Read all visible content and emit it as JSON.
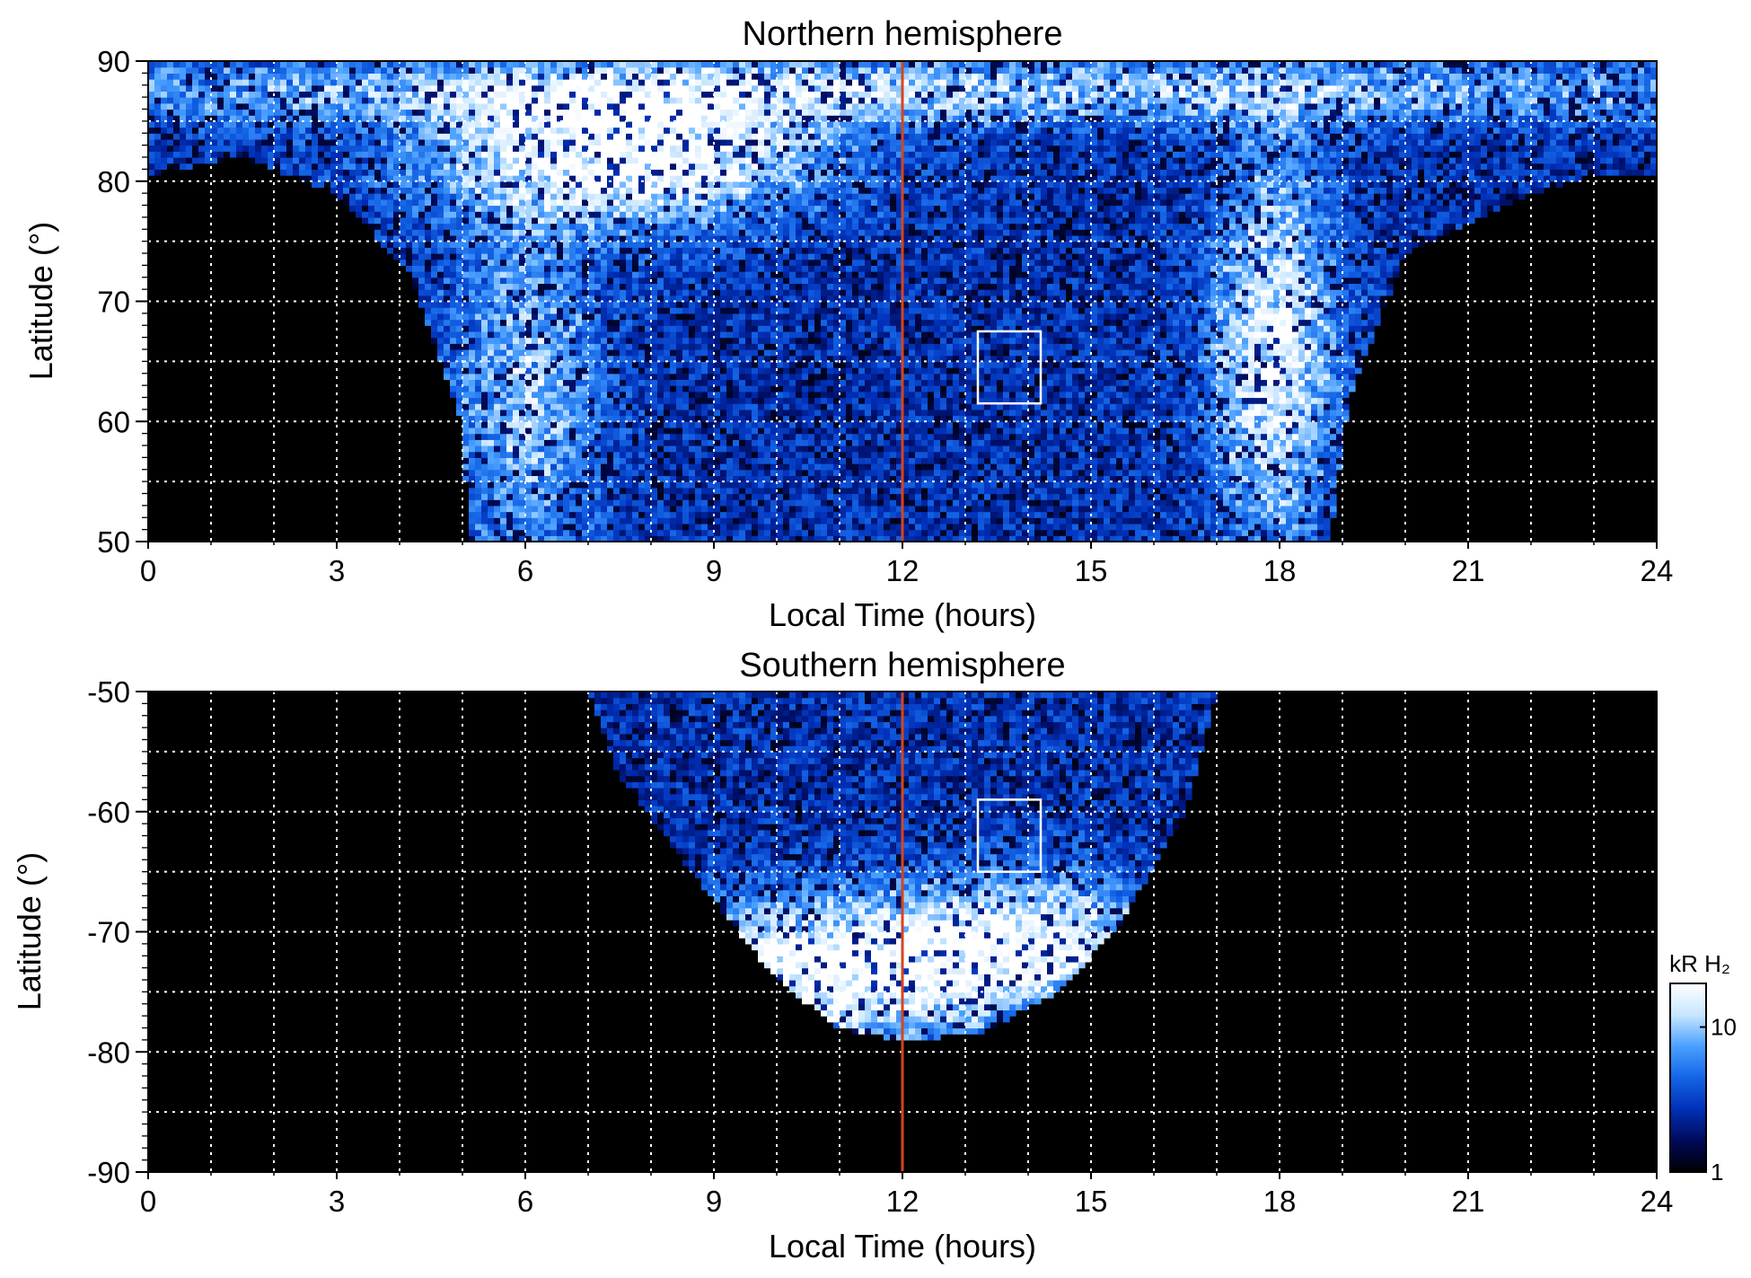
{
  "chart_data": [
    {
      "type": "heatmap",
      "title": "Northern hemisphere",
      "xlabel": "Local Time (hours)",
      "ylabel": "Latitude (°)",
      "xlim": [
        0,
        24
      ],
      "ylim": [
        50,
        90
      ],
      "x_ticks": [
        "0",
        "3",
        "6",
        "9",
        "12",
        "15",
        "18",
        "21",
        "24"
      ],
      "y_ticks": [
        "50",
        "60",
        "70",
        "80",
        "90"
      ],
      "x_tick_values": [
        0,
        3,
        6,
        9,
        12,
        15,
        18,
        21,
        24
      ],
      "y_tick_values": [
        50,
        60,
        70,
        80,
        90
      ],
      "grid": true,
      "noon_line_x": 12,
      "box": {
        "x": [
          13.2,
          14.2
        ],
        "y": [
          61.5,
          67.5
        ]
      },
      "coverage": [
        [
          0,
          90
        ],
        [
          0,
          80.5
        ],
        [
          1.5,
          82
        ],
        [
          3,
          79
        ],
        [
          4.2,
          72
        ],
        [
          5,
          60
        ],
        [
          5.1,
          50
        ],
        [
          18.8,
          50
        ],
        [
          19.1,
          62
        ],
        [
          20,
          74
        ],
        [
          22,
          79
        ],
        [
          23,
          80.5
        ],
        [
          24,
          80.5
        ],
        [
          24,
          90
        ]
      ],
      "features": [
        {
          "name": "morning arc",
          "x": 7.6,
          "y": 82,
          "sx": 2.2,
          "sy": 4,
          "amp": 0.9
        },
        {
          "name": "dawn band",
          "x": 6,
          "y": 62,
          "sx": 0.9,
          "sy": 10,
          "amp": 0.5
        },
        {
          "name": "dusk band",
          "x": 17.9,
          "y": 66,
          "sx": 0.7,
          "sy": 12,
          "amp": 0.75
        },
        {
          "name": "polar cap",
          "x": 12,
          "y": 87.5,
          "sx": 12,
          "sy": 2,
          "amp": 0.55
        }
      ]
    },
    {
      "type": "heatmap",
      "title": "Southern hemisphere",
      "xlabel": "Local Time (hours)",
      "ylabel": "Latitude (°)",
      "xlim": [
        0,
        24
      ],
      "ylim": [
        -90,
        -50
      ],
      "x_ticks": [
        "0",
        "3",
        "6",
        "9",
        "12",
        "15",
        "18",
        "21",
        "24"
      ],
      "y_ticks": [
        "-90",
        "-80",
        "-70",
        "-60",
        "-50"
      ],
      "x_tick_values": [
        0,
        3,
        6,
        9,
        12,
        15,
        18,
        21,
        24
      ],
      "y_tick_values": [
        -90,
        -80,
        -70,
        -60,
        -50
      ],
      "grid": true,
      "noon_line_x": 12,
      "box": {
        "x": [
          13.2,
          14.2
        ],
        "y": [
          -65,
          -59
        ]
      },
      "coverage": [
        [
          7,
          -50
        ],
        [
          7.5,
          -57
        ],
        [
          8.8,
          -66
        ],
        [
          10,
          -74
        ],
        [
          11,
          -78
        ],
        [
          12,
          -79
        ],
        [
          13.2,
          -78.5
        ],
        [
          14.5,
          -75
        ],
        [
          15.5,
          -69
        ],
        [
          16.5,
          -60
        ],
        [
          17,
          -50
        ]
      ],
      "features": [
        {
          "name": "dayside oval",
          "x": 11,
          "y": -73,
          "sx": 2.3,
          "sy": 4,
          "amp": 0.95
        },
        {
          "name": "afternoon oval",
          "x": 14.2,
          "y": -70,
          "sx": 1.5,
          "sy": 4,
          "amp": 0.5
        }
      ]
    }
  ],
  "colorbar": {
    "label": "kR H₂",
    "ticks": [
      {
        "label": "10",
        "value": 10
      },
      {
        "label": "1",
        "value": 1
      }
    ],
    "range": [
      1,
      20
    ],
    "scale": "log",
    "colors": [
      "#000000",
      "#000a5a",
      "#0030b8",
      "#1464e6",
      "#4aa0ff",
      "#c8e6ff",
      "#ffffff"
    ]
  },
  "colors": {
    "noon_line": "#d2461e",
    "grid": "#ffffff",
    "box": "#ffffff",
    "background": "#000000"
  }
}
